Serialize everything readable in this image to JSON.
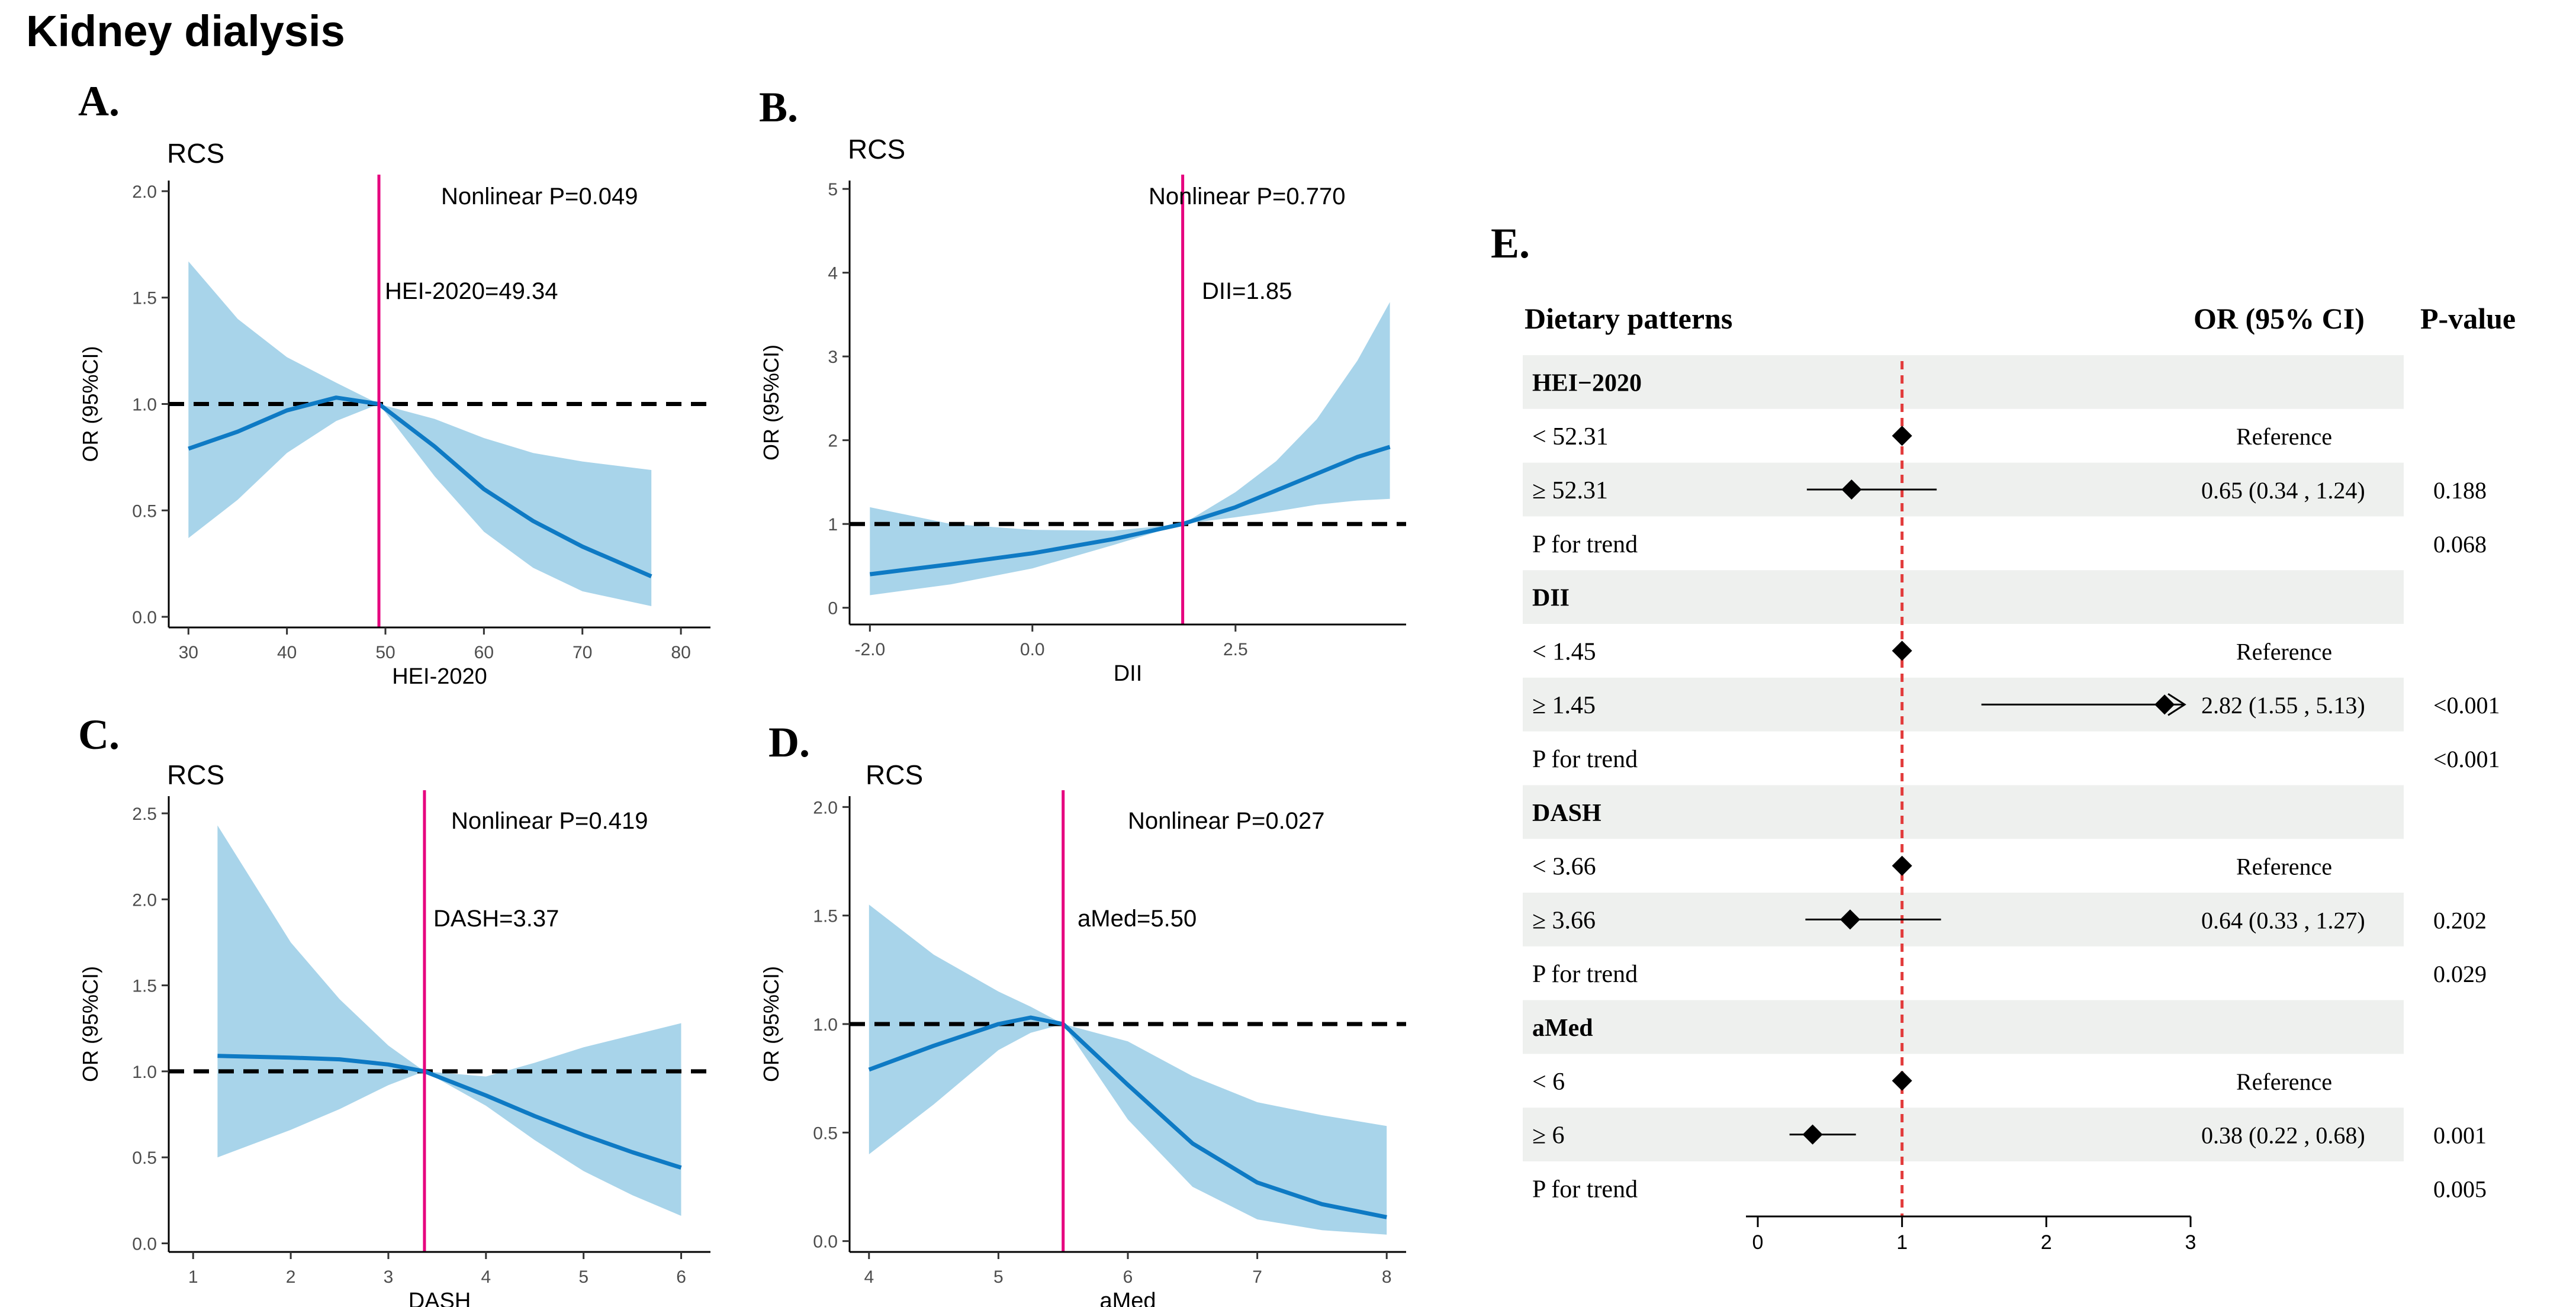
{
  "figure_title": "Kidney dialysis",
  "colors": {
    "ribbon": "#a8d4ea",
    "curve": "#0e7ac4",
    "cutoff_line": "#e6007e",
    "reference_line": "#000000",
    "forest_ref_line": "#e23b3b",
    "row_band": "#eef0ee"
  },
  "chart_data": [
    {
      "panel": "A.",
      "type": "line",
      "title": "RCS",
      "xlabel": "HEI-2020",
      "ylabel": "OR (95%CI)",
      "xlim": [
        28,
        83
      ],
      "ylim": [
        -0.05,
        2.05
      ],
      "xticks": [
        30,
        40,
        50,
        60,
        70,
        80
      ],
      "yticks": [
        0.0,
        0.5,
        1.0,
        1.5,
        2.0
      ],
      "xtick_labels": [
        "30",
        "40",
        "50",
        "60",
        "70",
        "80"
      ],
      "ytick_labels": [
        "0.0",
        "0.5",
        "1.0",
        "1.5",
        "2.0"
      ],
      "x": [
        30,
        35,
        40,
        45,
        49.34,
        55,
        60,
        65,
        70,
        77
      ],
      "or": [
        0.79,
        0.87,
        0.97,
        1.03,
        1.0,
        0.8,
        0.6,
        0.45,
        0.33,
        0.19
      ],
      "lower": [
        0.37,
        0.55,
        0.77,
        0.92,
        1.0,
        0.66,
        0.4,
        0.23,
        0.12,
        0.05
      ],
      "upper": [
        1.67,
        1.4,
        1.22,
        1.1,
        1.0,
        0.93,
        0.84,
        0.77,
        0.73,
        0.69
      ],
      "cutoff": 49.34,
      "cutoff_label": "HEI-2020=49.34",
      "nonlinear_label": "Nonlinear P=0.049"
    },
    {
      "panel": "B.",
      "type": "line",
      "title": "RCS",
      "xlabel": "DII",
      "ylabel": "OR (95%CI)",
      "xlim": [
        -2.25,
        4.6
      ],
      "ylim": [
        -0.2,
        5.1
      ],
      "xticks": [
        -2.0,
        0.0,
        2.5
      ],
      "yticks": [
        0,
        1,
        2,
        3,
        4,
        5
      ],
      "xtick_labels": [
        "-2.0",
        "0.0",
        "2.5"
      ],
      "ytick_labels": [
        "0",
        "1",
        "2",
        "3",
        "4",
        "5"
      ],
      "x": [
        -2.0,
        -1.0,
        0.0,
        1.0,
        1.85,
        2.5,
        3.0,
        3.5,
        4.0,
        4.4
      ],
      "or": [
        0.4,
        0.52,
        0.65,
        0.82,
        1.0,
        1.2,
        1.4,
        1.6,
        1.8,
        1.92
      ],
      "lower": [
        0.15,
        0.28,
        0.47,
        0.75,
        1.0,
        1.08,
        1.15,
        1.23,
        1.28,
        1.3
      ],
      "upper": [
        1.2,
        1.0,
        0.93,
        0.92,
        1.0,
        1.38,
        1.75,
        2.25,
        2.95,
        3.65
      ],
      "cutoff": 1.85,
      "cutoff_label": "DII=1.85",
      "nonlinear_label": "Nonlinear P=0.770"
    },
    {
      "panel": "C.",
      "type": "line",
      "title": "RCS",
      "xlabel": "DASH",
      "ylabel": "OR (95%CI)",
      "xlim": [
        0.75,
        6.3
      ],
      "ylim": [
        -0.05,
        2.6
      ],
      "xticks": [
        1,
        2,
        3,
        4,
        5,
        6
      ],
      "yticks": [
        0.0,
        0.5,
        1.0,
        1.5,
        2.0,
        2.5
      ],
      "xtick_labels": [
        "1",
        "2",
        "3",
        "4",
        "5",
        "6"
      ],
      "ytick_labels": [
        "0.0",
        "0.5",
        "1.0",
        "1.5",
        "2.0",
        "2.5"
      ],
      "x": [
        1.25,
        2.0,
        2.5,
        3.0,
        3.37,
        4.0,
        4.5,
        5.0,
        5.5,
        6.0
      ],
      "or": [
        1.09,
        1.08,
        1.07,
        1.04,
        1.0,
        0.86,
        0.74,
        0.63,
        0.53,
        0.44
      ],
      "lower": [
        0.5,
        0.66,
        0.78,
        0.92,
        1.0,
        0.8,
        0.6,
        0.42,
        0.28,
        0.16
      ],
      "upper": [
        2.43,
        1.75,
        1.42,
        1.15,
        1.0,
        0.97,
        1.05,
        1.14,
        1.21,
        1.28
      ],
      "cutoff": 3.37,
      "cutoff_label": "DASH=3.37",
      "nonlinear_label": "Nonlinear P=0.419"
    },
    {
      "panel": "D.",
      "type": "line",
      "title": "RCS",
      "xlabel": "aMed",
      "ylabel": "OR (95%CI)",
      "xlim": [
        3.85,
        8.15
      ],
      "ylim": [
        -0.05,
        2.05
      ],
      "xticks": [
        4,
        5,
        6,
        7,
        8
      ],
      "yticks": [
        0.0,
        0.5,
        1.0,
        1.5,
        2.0
      ],
      "xtick_labels": [
        "4",
        "5",
        "6",
        "7",
        "8"
      ],
      "ytick_labels": [
        "0.0",
        "0.5",
        "1.0",
        "1.5",
        "2.0"
      ],
      "x": [
        4.0,
        4.5,
        5.0,
        5.25,
        5.5,
        6.0,
        6.5,
        7.0,
        7.5,
        8.0
      ],
      "or": [
        0.79,
        0.9,
        1.0,
        1.03,
        1.0,
        0.72,
        0.45,
        0.27,
        0.17,
        0.11
      ],
      "lower": [
        0.4,
        0.63,
        0.88,
        0.96,
        1.0,
        0.56,
        0.25,
        0.1,
        0.05,
        0.03
      ],
      "upper": [
        1.55,
        1.32,
        1.15,
        1.08,
        1.0,
        0.92,
        0.76,
        0.64,
        0.58,
        0.53
      ],
      "cutoff": 5.5,
      "cutoff_label": "aMed=5.50",
      "nonlinear_label": "Nonlinear P=0.027"
    },
    {
      "panel": "E.",
      "type": "forest",
      "headers": [
        "Dietary patterns",
        "OR (95% CI)",
        "P-value"
      ],
      "xlim": [
        0,
        3
      ],
      "xticks": [
        0,
        1,
        2,
        3
      ],
      "xtick_labels": [
        "0",
        "1",
        "2",
        "3"
      ],
      "reference_x": 1,
      "rows": [
        {
          "label": "HEI−2020",
          "group": true,
          "band": true
        },
        {
          "label": "< 52.31",
          "ci_text": "Reference",
          "p": "",
          "or": 1,
          "band": false
        },
        {
          "label": "≥ 52.31",
          "ci_text": "0.65 (0.34 , 1.24)",
          "p": "0.188",
          "or": 0.65,
          "lo": 0.34,
          "hi": 1.24,
          "band": true
        },
        {
          "label": "P  for trend",
          "ci_text": "",
          "p": "0.068",
          "band": false
        },
        {
          "label": "DII",
          "group": true,
          "band": true
        },
        {
          "label": "< 1.45",
          "ci_text": "Reference",
          "p": "",
          "or": 1,
          "band": false
        },
        {
          "label": "≥ 1.45",
          "ci_text": "2.82 (1.55 , 5.13)",
          "p": "<0.001",
          "or": 2.82,
          "lo": 1.55,
          "hi": 5.13,
          "band": true
        },
        {
          "label": "P  for trend",
          "ci_text": "",
          "p": "<0.001",
          "band": false
        },
        {
          "label": "DASH",
          "group": true,
          "band": true
        },
        {
          "label": "< 3.66",
          "ci_text": "Reference",
          "p": "",
          "or": 1,
          "band": false
        },
        {
          "label": "≥ 3.66",
          "ci_text": "0.64 (0.33 , 1.27)",
          "p": "0.202",
          "or": 0.64,
          "lo": 0.33,
          "hi": 1.27,
          "band": true
        },
        {
          "label": "P  for trend",
          "ci_text": "",
          "p": "0.029",
          "band": false
        },
        {
          "label": "aMed",
          "group": true,
          "band": true
        },
        {
          "label": "< 6",
          "ci_text": "Reference",
          "p": "",
          "or": 1,
          "band": false
        },
        {
          "label": "≥ 6",
          "ci_text": "0.38 (0.22 , 0.68)",
          "p": "0.001",
          "or": 0.38,
          "lo": 0.22,
          "hi": 0.68,
          "band": true
        },
        {
          "label": "P  for trend",
          "ci_text": "",
          "p": "0.005",
          "band": false
        }
      ]
    }
  ]
}
